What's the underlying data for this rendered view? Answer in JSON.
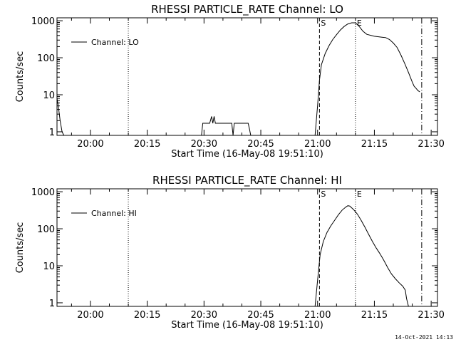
{
  "footer": {
    "timestamp": "14-Oct-2021 14:13"
  },
  "chart_data": [
    {
      "type": "line",
      "title": "RHESSI PARTICLE_RATE Channel: LO",
      "xlabel": "Start Time (16-May-08 19:51:10)",
      "ylabel": "Counts/sec",
      "x_ticks": [
        "20:00",
        "20:15",
        "20:30",
        "20:45",
        "21:00",
        "21:15",
        "21:30"
      ],
      "y_ticks": [
        "1",
        "10",
        "100",
        "1000"
      ],
      "y_scale": "log",
      "xlim": [
        "19:51:10",
        "21:31:40"
      ],
      "ylim": [
        0.8,
        1200
      ],
      "legend": {
        "entries": [
          "Channel: LO"
        ],
        "position": "top-left"
      },
      "markers": [
        {
          "time": "20:10:00",
          "style": "dotted",
          "label": ""
        },
        {
          "time": "21:00:30",
          "style": "dashed",
          "label": "S"
        },
        {
          "time": "21:10:00",
          "style": "dotted",
          "label": "E"
        },
        {
          "time": "21:27:30",
          "style": "dashdot",
          "label": ""
        }
      ],
      "series": [
        {
          "name": "Channel: LO",
          "segments": [
            {
              "x": [
                "19:51:10",
                "19:51:30",
                "19:52:00",
                "19:52:30",
                "19:53:00"
              ],
              "y": [
                8,
                5,
                2,
                1,
                0.8
              ]
            },
            {
              "x": [
                "20:29:20",
                "20:29:40",
                "20:31:30",
                "20:32:00",
                "20:32:20",
                "20:32:40",
                "20:33:00",
                "20:33:30",
                "20:33:50",
                "20:34:00",
                "20:34:30",
                "20:35:00",
                "20:36:30",
                "20:37:00",
                "20:37:20",
                "20:37:40",
                "20:38:00",
                "20:38:20",
                "20:38:40",
                "20:39:00",
                "20:39:30",
                "20:40:00",
                "20:41:40",
                "20:42:00",
                "20:42:20"
              ],
              "y": [
                0.8,
                1.7,
                1.7,
                2.6,
                1.7,
                2.6,
                1.7,
                1.7,
                1.7,
                1.7,
                1.7,
                1.7,
                1.7,
                1.7,
                1.7,
                0.8,
                1.7,
                1.7,
                1.7,
                1.7,
                1.7,
                1.7,
                1.7,
                1.2,
                0.8
              ]
            },
            {
              "x": [
                "20:59:20",
                "21:00:00",
                "21:00:30",
                "21:01:00",
                "21:02:00",
                "21:03:00",
                "21:04:00",
                "21:05:00",
                "21:06:00",
                "21:07:00",
                "21:08:00",
                "21:09:00",
                "21:10:00",
                "21:11:00",
                "21:12:00",
                "21:13:00",
                "21:15:00",
                "21:17:00",
                "21:18:00",
                "21:19:00",
                "21:20:00",
                "21:21:00",
                "21:22:00",
                "21:23:00",
                "21:24:00",
                "21:25:00",
                "21:25:30",
                "21:26:00",
                "21:26:30",
                "21:27:00"
              ],
              "y": [
                0.8,
                5,
                25,
                65,
                130,
                210,
                310,
                420,
                560,
                700,
                820,
                880,
                880,
                700,
                520,
                430,
                380,
                360,
                350,
                310,
                250,
                190,
                120,
                70,
                40,
                22,
                17,
                15,
                13,
                12
              ]
            }
          ]
        }
      ]
    },
    {
      "type": "line",
      "title": "RHESSI PARTICLE_RATE Channel: HI",
      "xlabel": "Start Time (16-May-08 19:51:10)",
      "ylabel": "Counts/sec",
      "x_ticks": [
        "20:00",
        "20:15",
        "20:30",
        "20:45",
        "21:00",
        "21:15",
        "21:30"
      ],
      "y_ticks": [
        "1",
        "10",
        "100",
        "1000"
      ],
      "y_scale": "log",
      "xlim": [
        "19:51:10",
        "21:31:40"
      ],
      "ylim": [
        0.8,
        1200
      ],
      "legend": {
        "entries": [
          "Channel: HI"
        ],
        "position": "top-left"
      },
      "markers": [
        {
          "time": "20:10:00",
          "style": "dotted",
          "label": ""
        },
        {
          "time": "21:00:30",
          "style": "dashed",
          "label": "S"
        },
        {
          "time": "21:10:00",
          "style": "dotted",
          "label": "E"
        },
        {
          "time": "21:27:30",
          "style": "dashdot",
          "label": ""
        }
      ],
      "series": [
        {
          "name": "Channel: HI",
          "segments": [
            {
              "x": [
                "20:59:20",
                "21:00:00",
                "21:00:40",
                "21:01:30",
                "21:02:30",
                "21:03:30",
                "21:04:30",
                "21:05:30",
                "21:06:30",
                "21:07:30",
                "21:08:00",
                "21:08:30",
                "21:09:30",
                "21:10:30",
                "21:11:30",
                "21:12:30",
                "21:13:30",
                "21:14:30",
                "21:15:30",
                "21:16:30",
                "21:17:30",
                "21:18:30",
                "21:19:30",
                "21:20:30",
                "21:21:30",
                "21:22:30",
                "21:23:10",
                "21:23:30",
                "21:24:00"
              ],
              "y": [
                0.8,
                4,
                20,
                45,
                80,
                120,
                170,
                240,
                320,
                390,
                420,
                410,
                330,
                250,
                170,
                110,
                70,
                45,
                30,
                21,
                14,
                9,
                6,
                4.5,
                3.5,
                2.8,
                2.2,
                1.3,
                0.8
              ]
            }
          ]
        }
      ]
    }
  ]
}
